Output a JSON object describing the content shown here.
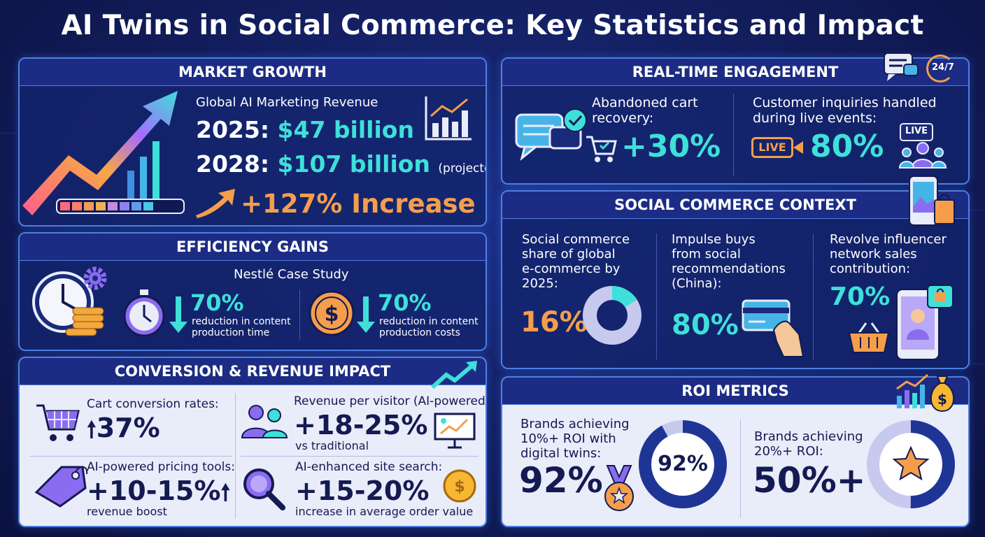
{
  "title": "AI Twins in Social Commerce: Key Statistics and Impact",
  "colors": {
    "cyan": "#3ee0d9",
    "orange": "#f49e4c",
    "navy": "#141a52",
    "panel_border": "#4e7fe0"
  },
  "market_growth": {
    "heading": "MARKET GROWTH",
    "subtitle": "Global AI Marketing Revenue",
    "row1_year": "2025:",
    "row1_value": "$47 billion",
    "row2_year": "2028:",
    "row2_value": "$107 billion",
    "row2_note": "(projected)",
    "increase": "+127% Increase",
    "icons": [
      "rising-arrow-icon",
      "bar-chart-icon",
      "progress-bar-icon",
      "up-arrow-icon"
    ]
  },
  "efficiency": {
    "heading": "EFFICIENCY GAINS",
    "case_study": "Nestlé Case Study",
    "stat1_value": "70%",
    "stat1_label_1": "reduction in content",
    "stat1_label_2": "production time",
    "stat2_value": "70%",
    "stat2_label_1": "reduction in content",
    "stat2_label_2": "production costs",
    "icons": [
      "clock-icon",
      "gear-icon",
      "coins-icon",
      "stopwatch-icon",
      "dollar-coin-icon",
      "down-arrow-icon"
    ]
  },
  "conversion": {
    "heading": "CONVERSION & REVENUE IMPACT",
    "cart_label": "Cart conversion rates:",
    "cart_value": "37%",
    "rpv_label": "Revenue per visitor (AI-powered",
    "rpv_value": "+18-25%",
    "rpv_note": "vs traditional",
    "pricing_label": "AI-powered pricing tools:",
    "pricing_value": "+10-15%",
    "pricing_note": "revenue boost",
    "search_label": "AI-enhanced site search:",
    "search_value": "+15-20%",
    "search_note": "increase in average order value",
    "icons": [
      "shopping-cart-icon",
      "users-icon",
      "presentation-chart-icon",
      "price-tag-icon",
      "magnifier-icon",
      "dollar-coin-icon",
      "trend-arrow-icon"
    ]
  },
  "engagement": {
    "heading": "REAL-TIME ENGAGEMENT",
    "cart_label_1": "Abandoned cart",
    "cart_label_2": "recovery:",
    "cart_value": "+30%",
    "inquiries_label_1": "Customer inquiries handled",
    "inquiries_label_2": "during live events:",
    "inquiries_value": "80%",
    "live_badge": "LIVE",
    "live_badge_2": "LIVE",
    "badge_247": "24/7",
    "icons": [
      "chat-bubbles-icon",
      "check-icon",
      "cart-icon",
      "live-camera-icon",
      "audience-icon",
      "phone-icon"
    ]
  },
  "context": {
    "heading": "SOCIAL COMMERCE CONTEXT",
    "share_label": [
      "Social commerce",
      "share of global",
      "e-commerce by",
      "2025:"
    ],
    "share_value": "16%",
    "share_fraction": 0.16,
    "impulse_label": [
      "Impulse buys",
      "from social",
      "recommendations",
      "(China):"
    ],
    "impulse_value": "80%",
    "revolve_label": [
      "Revolve influencer",
      "network sales",
      "contribution:"
    ],
    "revolve_value": "70%",
    "icons": [
      "donut-chart-icon",
      "credit-card-hand-icon",
      "shopping-basket-icon",
      "phone-influencer-icon",
      "shopping-bag-icon",
      "phone-photo-icon"
    ]
  },
  "roi": {
    "heading": "ROI METRICS",
    "roi10_label": [
      "Brands achieving",
      "10%+ ROI with",
      "digital twins:"
    ],
    "roi10_value": "92%",
    "roi10_ring_value": "92%",
    "roi10_fraction": 0.92,
    "roi20_label": [
      "Brands achieving",
      "20%+ ROI:"
    ],
    "roi20_value": "50%+",
    "roi20_fraction": 0.5,
    "icons": [
      "medal-icon",
      "star-icon",
      "money-bag-icon",
      "growth-chart-icon"
    ]
  }
}
